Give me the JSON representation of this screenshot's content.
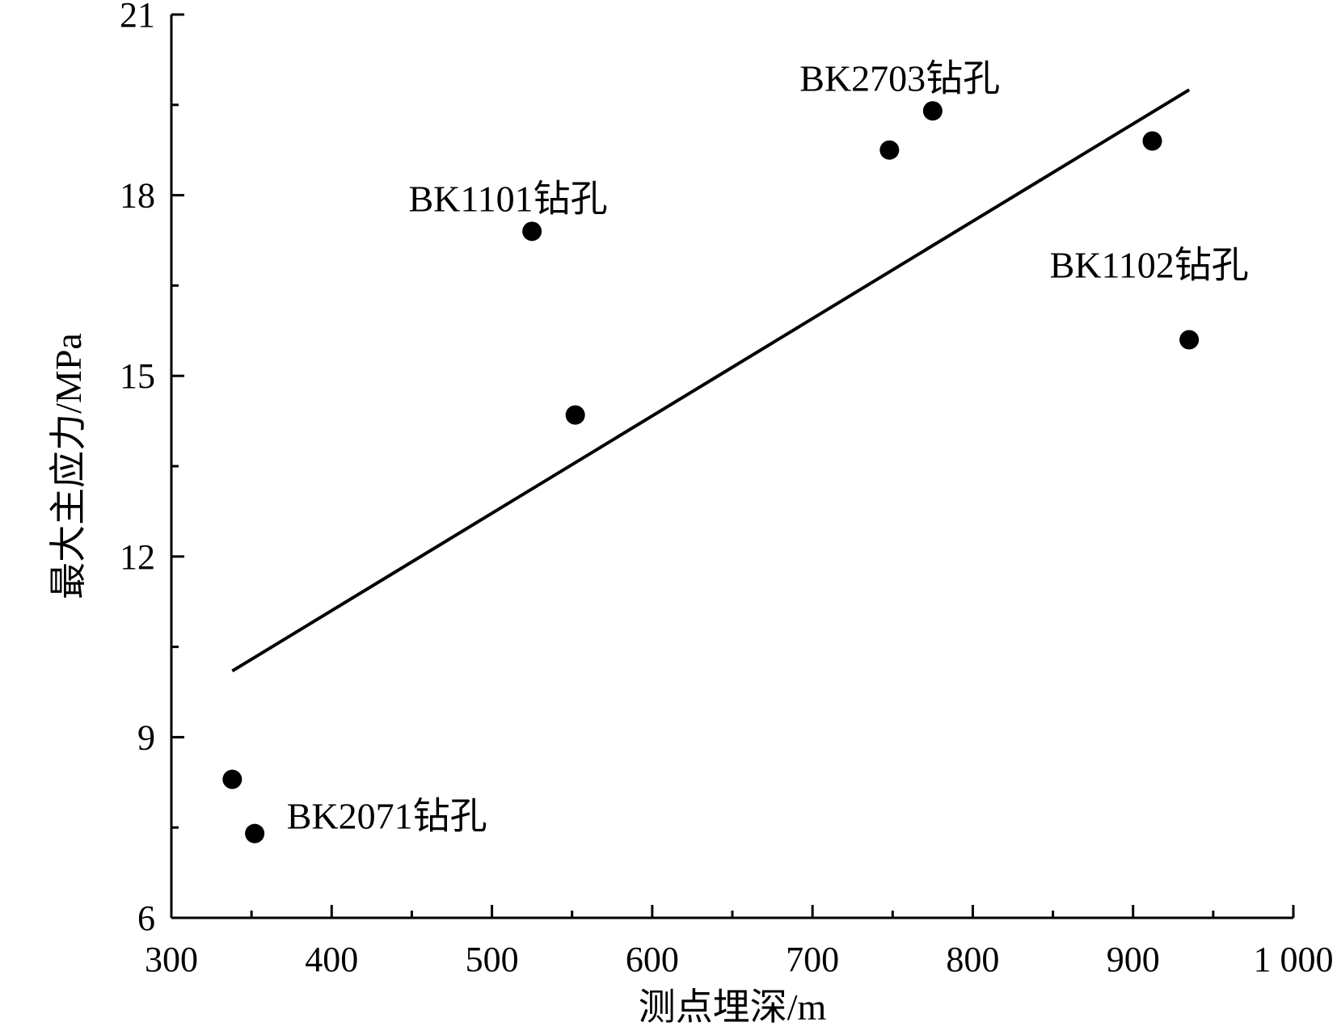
{
  "chart_data": {
    "type": "scatter",
    "xlabel": "测点埋深/m",
    "ylabel": "最大主应力/MPa",
    "xlim": [
      300,
      1000
    ],
    "ylim": [
      6,
      21
    ],
    "x_ticks": [
      300,
      400,
      500,
      600,
      700,
      800,
      900,
      1000
    ],
    "x_tick_labels": [
      "300",
      "400",
      "500",
      "600",
      "700",
      "800",
      "900",
      "1 000"
    ],
    "x_minor_ticks": [
      350,
      450,
      550,
      650,
      750,
      850,
      950
    ],
    "y_ticks": [
      6,
      9,
      12,
      15,
      18,
      21
    ],
    "y_tick_labels": [
      "6",
      "9",
      "12",
      "15",
      "18",
      "21"
    ],
    "y_minor_ticks": [
      7.5,
      10.5,
      13.5,
      16.5,
      19.5
    ],
    "grid": false,
    "marker_color": "#000000",
    "series": [
      {
        "points": [
          {
            "x": 338,
            "y": 8.3
          },
          {
            "x": 352,
            "y": 7.4
          },
          {
            "x": 525,
            "y": 17.4
          },
          {
            "x": 552,
            "y": 14.35
          },
          {
            "x": 748,
            "y": 18.75
          },
          {
            "x": 775,
            "y": 19.4
          },
          {
            "x": 912,
            "y": 18.9
          },
          {
            "x": 935,
            "y": 15.6
          }
        ]
      }
    ],
    "fit_line": {
      "x": [
        338,
        935
      ],
      "y": [
        10.1,
        19.75
      ],
      "color": "#000000"
    },
    "annotations": [
      {
        "text": "BK2071钻孔",
        "x": 372,
        "y": 7.7
      },
      {
        "text": "BK1101钻孔",
        "x": 448,
        "y": 17.95
      },
      {
        "text": "BK2703钻孔",
        "x": 692,
        "y": 19.95
      },
      {
        "text": "BK1102钻孔",
        "x": 848,
        "y": 16.85
      }
    ]
  }
}
